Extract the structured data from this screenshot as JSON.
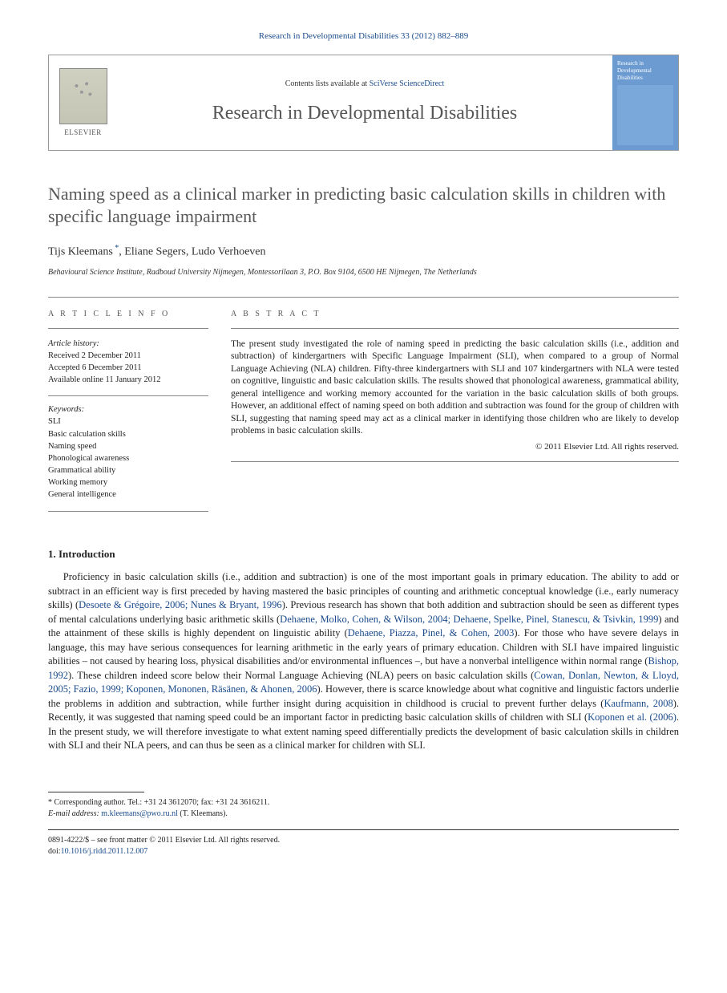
{
  "journal_ref": "Research in Developmental Disabilities 33 (2012) 882–889",
  "header": {
    "contents_prefix": "Contents lists available at ",
    "contents_link": "SciVerse ScienceDirect",
    "journal_title": "Research in Developmental Disabilities",
    "publisher": "ELSEVIER",
    "cover_text": "Research in Developmental Disabilities"
  },
  "article": {
    "title": "Naming speed as a clinical marker in predicting basic calculation skills in children with specific language impairment",
    "authors": "Tijs Kleemans *, Eliane Segers, Ludo Verhoeven",
    "affiliation": "Behavioural Science Institute, Radboud University Nijmegen, Montessorilaan 3, P.O. Box 9104, 6500 HE Nijmegen, The Netherlands"
  },
  "info": {
    "heading": "A R T I C L E   I N F O",
    "history_label": "Article history:",
    "received": "Received 2 December 2011",
    "accepted": "Accepted 6 December 2011",
    "online": "Available online 11 January 2012",
    "keywords_label": "Keywords:",
    "keywords": [
      "SLI",
      "Basic calculation skills",
      "Naming speed",
      "Phonological awareness",
      "Grammatical ability",
      "Working memory",
      "General intelligence"
    ]
  },
  "abstract": {
    "heading": "A B S T R A C T",
    "text": "The present study investigated the role of naming speed in predicting the basic calculation skills (i.e., addition and subtraction) of kindergartners with Specific Language Impairment (SLI), when compared to a group of Normal Language Achieving (NLA) children. Fifty-three kindergartners with SLI and 107 kindergartners with NLA were tested on cognitive, linguistic and basic calculation skills. The results showed that phonological awareness, grammatical ability, general intelligence and working memory accounted for the variation in the basic calculation skills of both groups. However, an additional effect of naming speed on both addition and subtraction was found for the group of children with SLI, suggesting that naming speed may act as a clinical marker in identifying those children who are likely to develop problems in basic calculation skills.",
    "copyright": "© 2011 Elsevier Ltd. All rights reserved."
  },
  "section1": {
    "heading": "1. Introduction",
    "para": "Proficiency in basic calculation skills (i.e., addition and subtraction) is one of the most important goals in primary education. The ability to add or subtract in an efficient way is first preceded by having mastered the basic principles of counting and arithmetic conceptual knowledge (i.e., early numeracy skills) (Desoete & Grégoire, 2006; Nunes & Bryant, 1996). Previous research has shown that both addition and subtraction should be seen as different types of mental calculations underlying basic arithmetic skills (Dehaene, Molko, Cohen, & Wilson, 2004; Dehaene, Spelke, Pinel, Stanescu, & Tsivkin, 1999) and the attainment of these skills is highly dependent on linguistic ability (Dehaene, Piazza, Pinel, & Cohen, 2003). For those who have severe delays in language, this may have serious consequences for learning arithmetic in the early years of primary education. Children with SLI have impaired linguistic abilities – not caused by hearing loss, physical disabilities and/or environmental influences –, but have a nonverbal intelligence within normal range (Bishop, 1992). These children indeed score below their Normal Language Achieving (NLA) peers on basic calculation skills (Cowan, Donlan, Newton, & Lloyd, 2005; Fazio, 1999; Koponen, Mononen, Räsänen, & Ahonen, 2006). However, there is scarce knowledge about what cognitive and linguistic factors underlie the problems in addition and subtraction, while further insight during acquisition in childhood is crucial to prevent further delays (Kaufmann, 2008). Recently, it was suggested that naming speed could be an important factor in predicting basic calculation skills of children with SLI (Koponen et al. (2006). In the present study, we will therefore investigate to what extent naming speed differentially predicts the development of basic calculation skills in children with SLI and their NLA peers, and can thus be seen as a clinical marker for children with SLI."
  },
  "footnote": {
    "corresponding": "* Corresponding author. Tel.: +31 24 3612070; fax: +31 24 3616211.",
    "email_label": "E-mail address: ",
    "email": "m.kleemans@pwo.ru.nl",
    "email_suffix": " (T. Kleemans)."
  },
  "bottom": {
    "issn": "0891-4222/$ – see front matter © 2011 Elsevier Ltd. All rights reserved.",
    "doi_prefix": "doi:",
    "doi": "10.1016/j.ridd.2011.12.007"
  },
  "citations": {
    "c1": "Desoete & Grégoire, 2006; Nunes & Bryant, 1996",
    "c2": "Dehaene, Molko, Cohen, & Wilson, 2004; Dehaene, Spelke, Pinel, Stanescu, & Tsivkin, 1999",
    "c3": "Dehaene, Piazza, Pinel, & Cohen, 2003",
    "c4": "Bishop, 1992",
    "c5": "Cowan, Donlan, Newton, & Lloyd, 2005; Fazio, 1999; Koponen, Mononen, Räsänen, & Ahonen, 2006",
    "c6": "Kaufmann, 2008",
    "c7": "Koponen et al. (2006)"
  }
}
